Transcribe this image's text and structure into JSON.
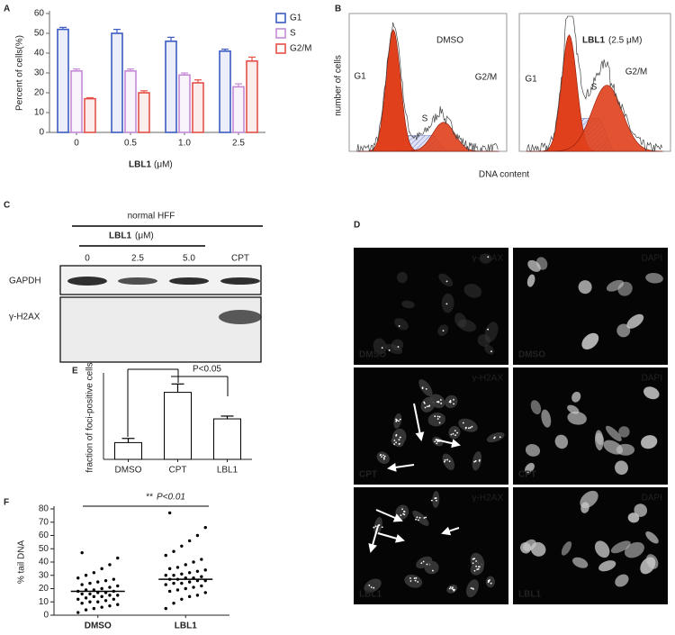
{
  "panel_labels": [
    "A",
    "B",
    "C",
    "D",
    "E",
    "F"
  ],
  "chart_data": [
    {
      "type": "bar",
      "y_label": "Percent of cells(%)",
      "x_label": "LBL1",
      "x_label_unit": "(μM)",
      "categories": [
        "0",
        "0.5",
        "1.0",
        "2.5"
      ],
      "series": [
        {
          "name": "G1",
          "color": "#3d5cc4",
          "values": [
            52,
            50,
            46,
            41
          ],
          "errors": [
            1,
            2,
            2,
            1
          ]
        },
        {
          "name": "S",
          "color": "#c48ad6",
          "values": [
            31,
            31,
            29,
            23
          ],
          "errors": [
            1,
            1,
            1,
            1.5
          ]
        },
        {
          "name": "G2/M",
          "color": "#e5504a",
          "values": [
            17,
            20,
            25,
            36
          ],
          "errors": [
            0.5,
            1,
            1.5,
            2
          ]
        }
      ],
      "ylim": [
        0,
        60
      ],
      "yticks": [
        0,
        10,
        20,
        30,
        40,
        50,
        60
      ],
      "legend": "top-right"
    },
    {
      "type": "bar",
      "y_label": "fraction of foci-positive cells",
      "categories": [
        "DMSO",
        "CPT",
        "LBL1"
      ],
      "values": [
        0.12,
        0.48,
        0.29
      ],
      "errors": [
        0.03,
        0.06,
        0.02
      ],
      "color": "#000000",
      "ylim": [
        0,
        0.6
      ],
      "annotations": [
        "P<0.05",
        "P<0.05"
      ]
    },
    {
      "type": "scatter",
      "y_label": "% tail DNA",
      "categories": [
        "DMSO",
        "LBL1"
      ],
      "series": [
        {
          "color": "#000000",
          "values": [
            2,
            4,
            5,
            6,
            7,
            8,
            9,
            10,
            10,
            11,
            12,
            12,
            13,
            14,
            14,
            15,
            15,
            16,
            16,
            17,
            17,
            18,
            18,
            19,
            19,
            20,
            21,
            22,
            23,
            24,
            25,
            26,
            27,
            28,
            30,
            32,
            35,
            38,
            43,
            47
          ]
        },
        {
          "color": "#000000",
          "values": [
            5,
            9,
            12,
            14,
            15,
            17,
            18,
            19,
            20,
            21,
            22,
            23,
            24,
            24,
            25,
            26,
            26,
            27,
            27,
            28,
            28,
            29,
            30,
            30,
            31,
            32,
            33,
            34,
            35,
            36,
            38,
            40,
            42,
            45,
            48,
            52,
            56,
            60,
            66,
            77
          ]
        }
      ],
      "means": [
        18,
        27
      ],
      "ylim": [
        0,
        80
      ],
      "yticks": [
        0,
        10,
        20,
        30,
        40,
        50,
        60,
        70,
        80
      ],
      "annotation_stars": "**",
      "annotation": "P<0.01"
    }
  ],
  "flow_cytometry": {
    "y_label": "number of cells",
    "x_label": "DNA content",
    "plots": [
      {
        "title": "DMSO",
        "phase_labels": [
          "G1",
          "S",
          "G2/M"
        ]
      },
      {
        "title": "LBL1",
        "subtitle": "(2.5 μM)",
        "phase_labels": [
          "G1",
          "S",
          "G2/M"
        ]
      }
    ]
  },
  "western_blot": {
    "cell_line": "normal HFF",
    "treatment": "LBL1",
    "unit": "(μM)",
    "lanes": [
      "0",
      "2.5",
      "5.0",
      "CPT"
    ],
    "rows": [
      "GAPDH",
      "γ-H2AX"
    ]
  },
  "microscopy": {
    "stains": [
      "γ-H2AX",
      "DAPI"
    ],
    "conditions": [
      "DMSO",
      "CPT",
      "LBL1"
    ]
  }
}
